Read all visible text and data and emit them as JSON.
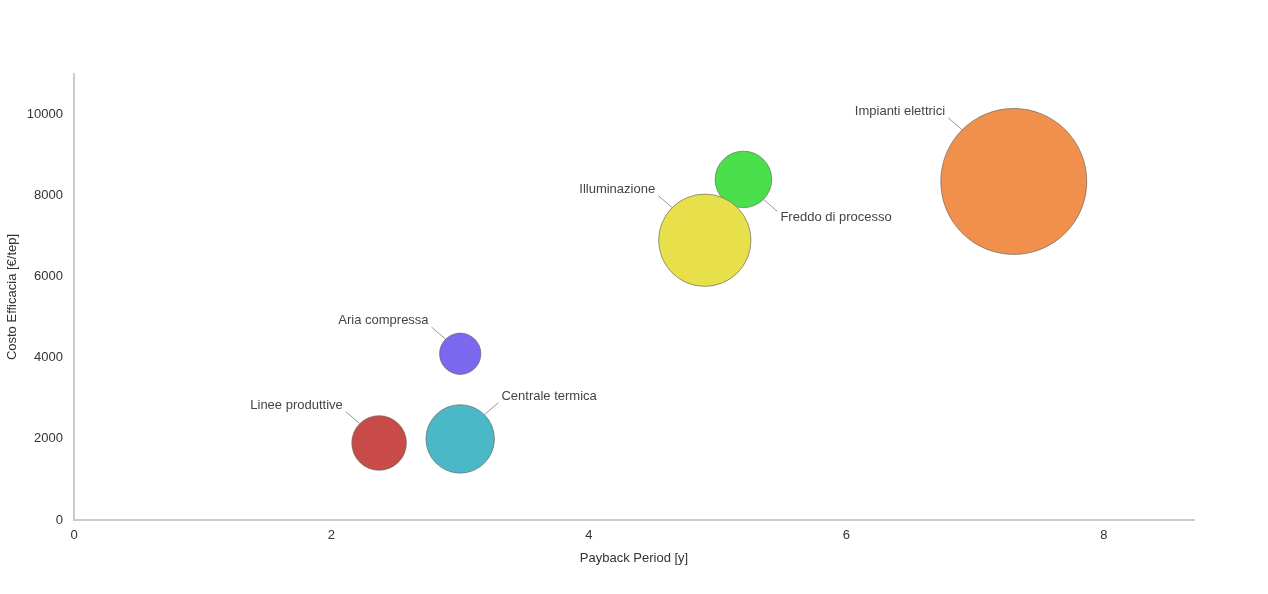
{
  "chart_data": {
    "type": "bubble",
    "xlabel": "Payback Period [y]",
    "ylabel": "Costo Efficacia [€/tep]",
    "xlim": [
      0,
      8.7
    ],
    "xticks": [
      0,
      2,
      4,
      6,
      8
    ],
    "ylim": [
      0,
      11000
    ],
    "yticks": [
      0,
      2000,
      4000,
      6000,
      8000,
      10000
    ],
    "grid": false,
    "series": [
      {
        "name": "Linee produttive",
        "color": "#c84b47",
        "x": [
          2.37
        ],
        "values": [
          1900
        ],
        "sizes": [
          0.14
        ]
      },
      {
        "name": "Centrale termica",
        "color": "#4bb8c8",
        "x": [
          3.0
        ],
        "values": [
          2000
        ],
        "sizes": [
          0.22
        ]
      },
      {
        "name": "Aria compressa",
        "color": "#7b68ee",
        "x": [
          3.0
        ],
        "values": [
          4100
        ],
        "sizes": [
          0.08
        ]
      },
      {
        "name": "Illuminazione",
        "color": "#e8e04a",
        "x": [
          4.9
        ],
        "values": [
          6900
        ],
        "sizes": [
          0.4
        ]
      },
      {
        "name": "Freddo di processo",
        "color": "#4be04b",
        "x": [
          5.2
        ],
        "values": [
          8400
        ],
        "sizes": [
          0.15
        ]
      },
      {
        "name": "Impianti elettrici",
        "color": "#f0904c",
        "x": [
          7.3
        ],
        "values": [
          8350
        ],
        "sizes": [
          1
        ]
      }
    ]
  }
}
